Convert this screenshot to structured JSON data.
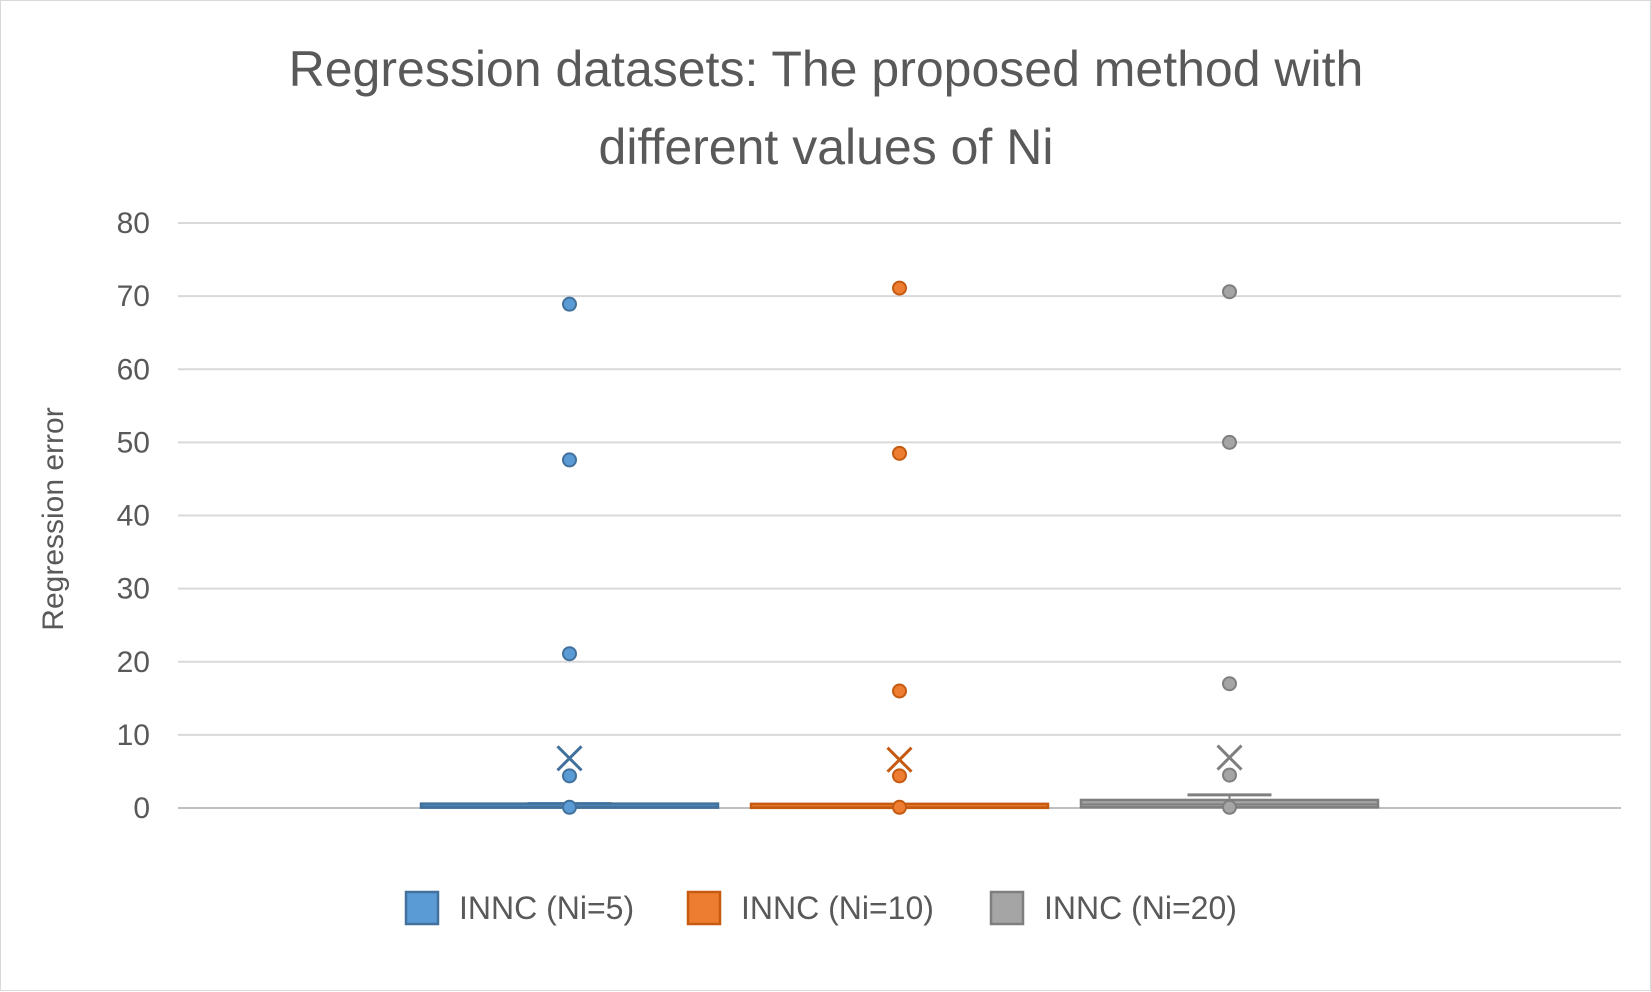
{
  "chart_data": {
    "type": "box",
    "title_lines": [
      "Regression datasets: The proposed method with",
      "different values of Ni"
    ],
    "xlabel": "",
    "ylabel": "Regression error",
    "ylim": [
      0,
      80
    ],
    "yticks": [
      "0",
      "10",
      "20",
      "30",
      "40",
      "50",
      "60",
      "70",
      "80"
    ],
    "grid": true,
    "legend_position": "bottom",
    "series": [
      {
        "name": "INNC (Ni=5)",
        "color": "#5b9bd5",
        "stroke": "#41719c",
        "min": 0.0,
        "q1": 0.05,
        "median": 0.2,
        "q3": 0.45,
        "whisker_max": 0.6,
        "mean": 6.8,
        "outliers": [
          0.1,
          4.4,
          21.1,
          47.6,
          68.9
        ]
      },
      {
        "name": "INNC (Ni=10)",
        "color": "#ed7d31",
        "stroke": "#c55a11",
        "min": 0.0,
        "q1": 0.02,
        "median": 0.1,
        "q3": 0.2,
        "whisker_max": 0.3,
        "mean": 6.6,
        "outliers": [
          0.1,
          4.4,
          16.0,
          48.5,
          71.1
        ]
      },
      {
        "name": "INNC (Ni=20)",
        "color": "#a5a5a5",
        "stroke": "#7f7f7f",
        "min": 0.0,
        "q1": 0.1,
        "median": 0.5,
        "q3": 1.1,
        "whisker_max": 1.8,
        "mean": 6.9,
        "outliers": [
          0.1,
          4.5,
          17.0,
          50.0,
          70.6
        ]
      }
    ]
  }
}
